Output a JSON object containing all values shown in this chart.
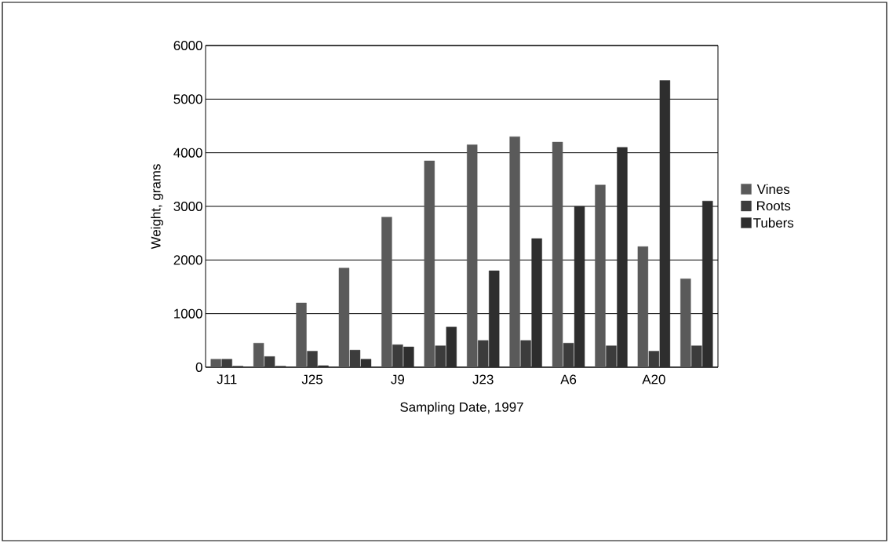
{
  "chart_data": {
    "type": "bar",
    "xlabel": "Sampling Date, 1997",
    "ylabel": "Weight, grams",
    "categories": [
      "J11",
      null,
      "J25",
      null,
      "J9",
      null,
      "J23",
      null,
      "A6",
      null,
      "A20",
      null
    ],
    "series": [
      {
        "name": "Vines",
        "color": "#5a5a5a",
        "values": [
          150,
          450,
          1200,
          1850,
          2800,
          3850,
          4150,
          4300,
          4200,
          3400,
          2250,
          1650
        ]
      },
      {
        "name": "Roots",
        "color": "#3c3c3c",
        "values": [
          150,
          200,
          300,
          320,
          420,
          400,
          500,
          500,
          450,
          400,
          300,
          400
        ]
      },
      {
        "name": "Tubers",
        "color": "#2e2e2e",
        "values": [
          20,
          20,
          30,
          150,
          380,
          750,
          1800,
          2400,
          3000,
          4100,
          5350,
          3100
        ]
      }
    ],
    "ylim": [
      0,
      6000
    ],
    "yticks": [
      0,
      1000,
      2000,
      3000,
      4000,
      5000,
      6000
    ],
    "grid": "y",
    "legend": "right"
  }
}
